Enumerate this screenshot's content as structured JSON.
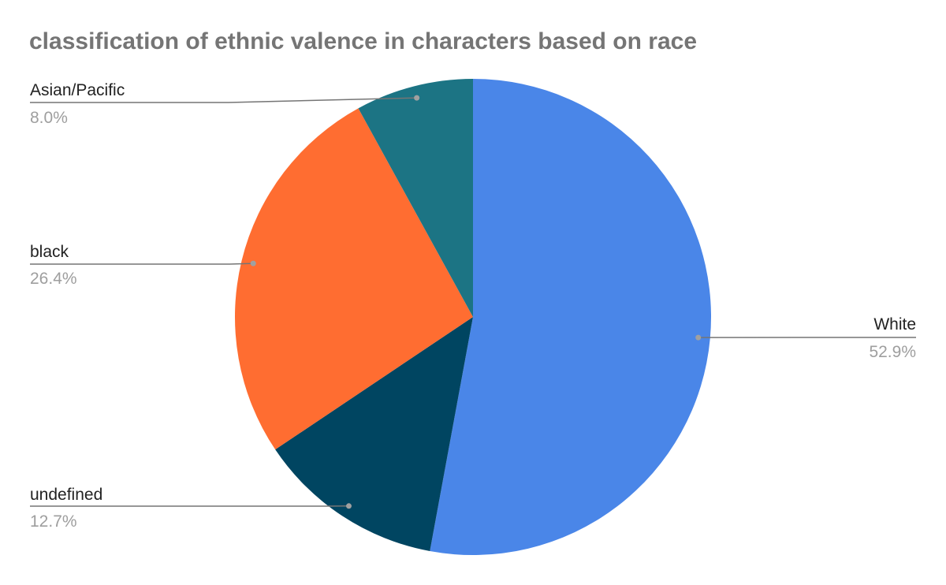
{
  "chart_data": {
    "type": "pie",
    "title": "classification of ethnic valence in characters based on race",
    "slices": [
      {
        "label": "White",
        "value": 52.9,
        "value_label": "52.9%",
        "color": "#4a86e8"
      },
      {
        "label": "undefined",
        "value": 12.7,
        "value_label": "12.7%",
        "color": "#004561"
      },
      {
        "label": "black",
        "value": 26.4,
        "value_label": "26.4%",
        "color": "#ff6d31"
      },
      {
        "label": "Asian/Pacific",
        "value": 8.0,
        "value_label": "8.0%",
        "color": "#1c7484"
      }
    ],
    "start": "12 o'clock",
    "direction": "clockwise",
    "legend": "none (labels beside slices with leader lines)"
  }
}
